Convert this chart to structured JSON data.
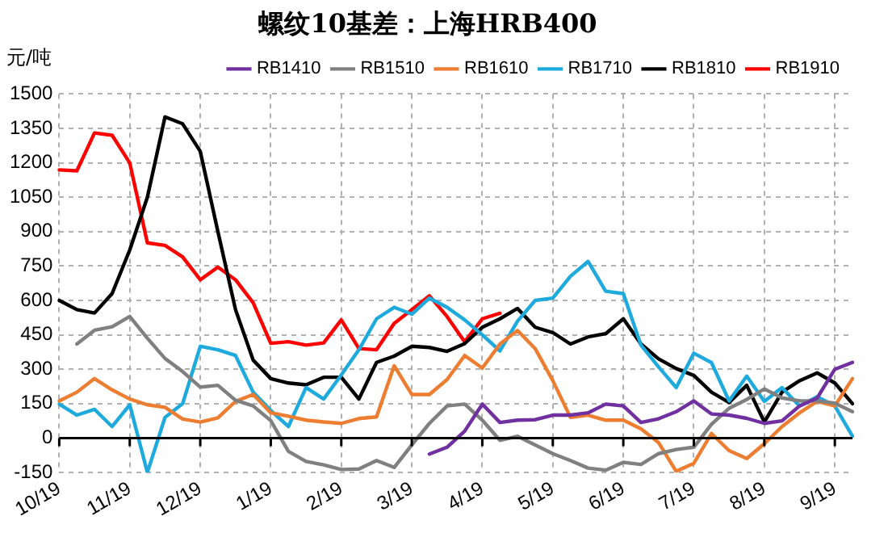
{
  "chart_data": {
    "type": "line",
    "title": "螺纹10基差：上海HRB400",
    "ylabel": "元/吨",
    "categories": [
      "10/19",
      null,
      null,
      null,
      "11/19",
      null,
      null,
      null,
      "12/19",
      null,
      null,
      null,
      "1/19",
      null,
      null,
      null,
      "2/19",
      null,
      null,
      null,
      "3/19",
      null,
      null,
      null,
      "4/19",
      null,
      null,
      null,
      "5/19",
      null,
      null,
      null,
      "6/19",
      null,
      null,
      null,
      "7/19",
      null,
      null,
      null,
      "8/19",
      null,
      null,
      null,
      "9/19",
      null
    ],
    "ylim": [
      -150,
      1500
    ],
    "yticks": [
      -150,
      0,
      150,
      300,
      450,
      600,
      750,
      900,
      1050,
      1200,
      1350,
      1500
    ],
    "grid": true,
    "legend": "top",
    "marker": "none",
    "series": [
      {
        "name": "RB1410",
        "color": "#7030a0",
        "values": [
          null,
          null,
          null,
          null,
          null,
          null,
          null,
          null,
          null,
          null,
          null,
          null,
          null,
          null,
          null,
          null,
          null,
          null,
          null,
          null,
          null,
          -70,
          -40,
          30,
          148,
          68,
          78,
          80,
          100,
          100,
          110,
          148,
          140,
          68,
          84,
          115,
          162,
          105,
          100,
          86,
          64,
          75,
          140,
          175,
          300,
          330
        ]
      },
      {
        "name": "RB1510",
        "color": "#808080",
        "values": [
          null,
          410,
          470,
          485,
          530,
          435,
          347,
          290,
          222,
          230,
          165,
          140,
          76,
          -58,
          -102,
          -117,
          -137,
          -135,
          -98,
          -128,
          -30,
          64,
          140,
          148,
          78,
          -10,
          8,
          -30,
          -68,
          -98,
          -131,
          -140,
          -106,
          -115,
          -68,
          -50,
          -40,
          60,
          130,
          168,
          214,
          175,
          162,
          162,
          152,
          115
        ]
      },
      {
        "name": "RB1610",
        "color": "#ed7d31",
        "values": [
          162,
          200,
          259,
          210,
          170,
          145,
          134,
          83,
          70,
          88,
          160,
          190,
          110,
          95,
          78,
          70,
          64,
          85,
          92,
          315,
          190,
          190,
          255,
          360,
          305,
          410,
          469,
          390,
          250,
          90,
          100,
          78,
          78,
          40,
          -20,
          -145,
          -110,
          20,
          -55,
          -89,
          -25,
          50,
          110,
          160,
          140,
          259
        ]
      },
      {
        "name": "RB1710",
        "color": "#1eaadc",
        "values": [
          148,
          100,
          125,
          50,
          145,
          -150,
          90,
          150,
          400,
          385,
          360,
          200,
          120,
          50,
          220,
          170,
          275,
          385,
          520,
          570,
          540,
          610,
          570,
          515,
          450,
          380,
          510,
          600,
          610,
          705,
          770,
          640,
          630,
          405,
          310,
          220,
          370,
          329,
          162,
          270,
          160,
          220,
          140,
          180,
          140,
          8
        ]
      },
      {
        "name": "RB1810",
        "color": "#000000",
        "values": [
          600,
          560,
          545,
          630,
          820,
          1050,
          1400,
          1370,
          1250,
          900,
          560,
          340,
          259,
          240,
          232,
          265,
          265,
          170,
          330,
          357,
          400,
          395,
          378,
          412,
          483,
          520,
          565,
          483,
          460,
          410,
          441,
          455,
          520,
          410,
          345,
          303,
          273,
          200,
          155,
          230,
          70,
          200,
          250,
          284,
          240,
          150
        ]
      },
      {
        "name": "RB1910",
        "color": "#ff0000",
        "values": [
          1169,
          1165,
          1330,
          1320,
          1200,
          851,
          840,
          790,
          690,
          745,
          690,
          590,
          413,
          420,
          405,
          415,
          515,
          390,
          385,
          500,
          560,
          620,
          530,
          420,
          520,
          544,
          null,
          null,
          null,
          null,
          null,
          null,
          null,
          null,
          null,
          null,
          null,
          null,
          null,
          null,
          null,
          null,
          null,
          null,
          null,
          null
        ]
      }
    ]
  }
}
